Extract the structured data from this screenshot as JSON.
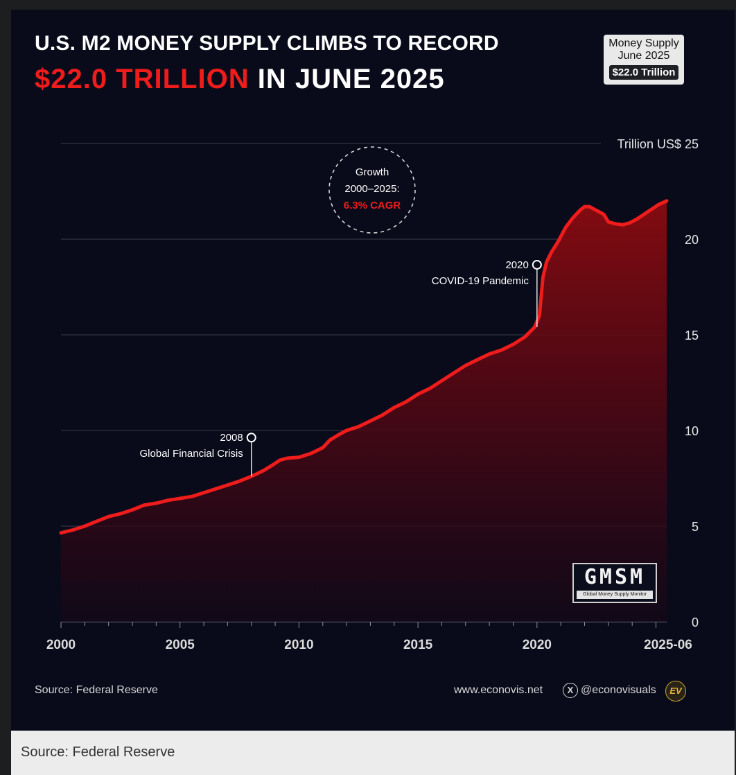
{
  "title": {
    "line1": "U.S. M2 MONEY SUPPLY CLIMBS TO RECORD",
    "highlight": "$22.0 TRILLION",
    "rest": " IN JUNE 2025"
  },
  "badge": {
    "line1": "Money Supply",
    "line2": "June 2025",
    "value": "$22.0 Trillion"
  },
  "growth_note": {
    "line1": "Growth",
    "line2": "2000–2025:",
    "line3": "6.3% CAGR"
  },
  "gmsm_logo": {
    "letters": "GMSM",
    "subtitle": "Global Money Supply Monitor"
  },
  "footer": {
    "source": "Source: Federal Reserve",
    "site": "www.econovis.net",
    "x_icon": "X",
    "handle": "@econovisuals",
    "logo": "EV"
  },
  "caption": "Source: Federal Reserve",
  "colors": {
    "accent": "#ef1c1c",
    "background": "#090b1a"
  },
  "chart_data": {
    "type": "area",
    "title": "U.S. M2 Money Supply",
    "ylabel": "Trillion US$",
    "ylim": [
      0,
      25
    ],
    "yticks": [
      {
        "value": 25,
        "label": "Trillion US$ 25"
      },
      {
        "value": 20,
        "label": "20"
      },
      {
        "value": 15,
        "label": "15"
      },
      {
        "value": 10,
        "label": "10"
      },
      {
        "value": 5,
        "label": "5"
      },
      {
        "value": 0,
        "label": "0"
      }
    ],
    "xlim": [
      2000,
      2025.45
    ],
    "xticks": [
      {
        "value": 2000,
        "label": "2000"
      },
      {
        "value": 2005,
        "label": "2005"
      },
      {
        "value": 2010,
        "label": "2010"
      },
      {
        "value": 2015,
        "label": "2015"
      },
      {
        "value": 2020,
        "label": "2020"
      },
      {
        "value": 2025.45,
        "label": "2025-06"
      }
    ],
    "series": [
      {
        "name": "M2 Money Supply",
        "x": [
          2000,
          2000.5,
          2001,
          2001.5,
          2002,
          2002.5,
          2003,
          2003.5,
          2004,
          2004.5,
          2005,
          2005.5,
          2006,
          2006.5,
          2007,
          2007.5,
          2008,
          2008.5,
          2008.9,
          2009.2,
          2009.5,
          2010,
          2010.5,
          2011,
          2011.3,
          2011.7,
          2012,
          2012.5,
          2013,
          2013.5,
          2014,
          2014.5,
          2015,
          2015.5,
          2016,
          2016.5,
          2017,
          2017.5,
          2018,
          2018.5,
          2019,
          2019.5,
          2019.9,
          2020.1,
          2020.25,
          2020.4,
          2020.6,
          2020.9,
          2021.2,
          2021.5,
          2021.8,
          2022.0,
          2022.2,
          2022.5,
          2022.8,
          2023.0,
          2023.3,
          2023.6,
          2023.9,
          2024.2,
          2024.5,
          2024.8,
          2025.1,
          2025.45
        ],
        "values": [
          4.65,
          4.8,
          5.0,
          5.25,
          5.5,
          5.65,
          5.85,
          6.1,
          6.2,
          6.35,
          6.45,
          6.55,
          6.75,
          6.95,
          7.15,
          7.35,
          7.6,
          7.9,
          8.2,
          8.45,
          8.55,
          8.6,
          8.8,
          9.1,
          9.5,
          9.8,
          10.0,
          10.2,
          10.5,
          10.8,
          11.2,
          11.5,
          11.9,
          12.2,
          12.6,
          13.0,
          13.4,
          13.7,
          14.0,
          14.2,
          14.5,
          14.9,
          15.4,
          16.0,
          18.0,
          18.8,
          19.3,
          19.9,
          20.6,
          21.1,
          21.5,
          21.7,
          21.7,
          21.5,
          21.3,
          20.9,
          20.8,
          20.75,
          20.85,
          21.05,
          21.3,
          21.55,
          21.8,
          22.0
        ]
      }
    ],
    "annotations": [
      {
        "x": 2008.0,
        "y": 7.6,
        "year": "2008",
        "label": "Global Financial Crisis"
      },
      {
        "x": 2020.0,
        "y": 15.4,
        "year": "2020",
        "label": "COVID-19 Pandemic"
      }
    ]
  }
}
